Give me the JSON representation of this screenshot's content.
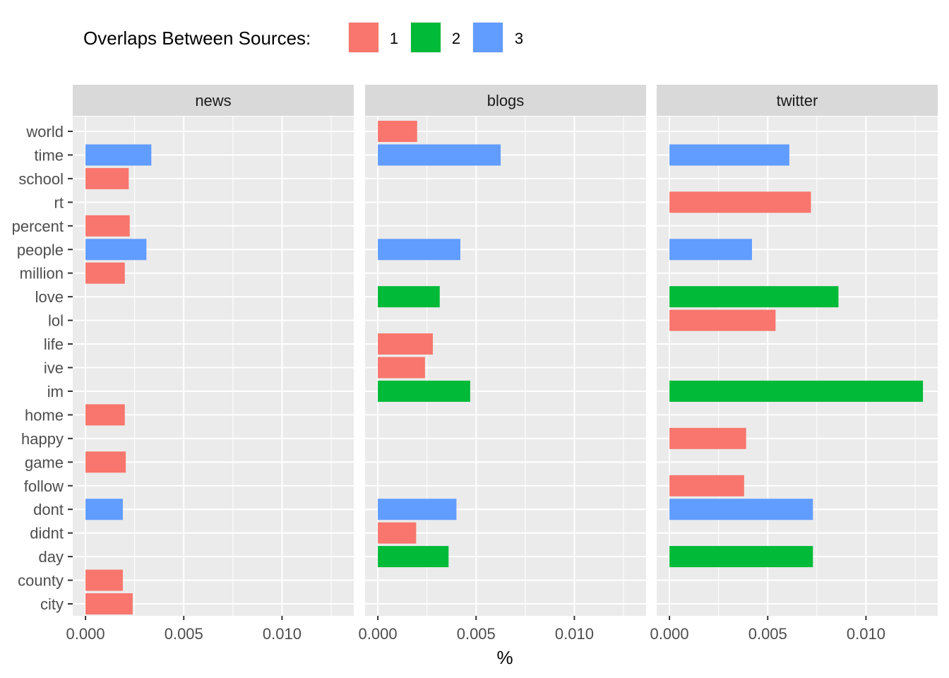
{
  "chart_data": {
    "type": "bar",
    "orientation": "horizontal",
    "facets": [
      "news",
      "blogs",
      "twitter"
    ],
    "categories": [
      "world",
      "time",
      "school",
      "rt",
      "percent",
      "people",
      "million",
      "love",
      "lol",
      "life",
      "ive",
      "im",
      "home",
      "happy",
      "game",
      "follow",
      "dont",
      "didnt",
      "day",
      "county",
      "city"
    ],
    "legend": {
      "title": "Overlaps Between Sources:",
      "entries": [
        {
          "label": "1",
          "color": "#F8766D"
        },
        {
          "label": "2",
          "color": "#00BA38"
        },
        {
          "label": "3",
          "color": "#619CFF"
        }
      ],
      "placement": "top"
    },
    "xlabel": "%",
    "ylabel": "",
    "xlim": [
      -0.00065,
      0.01365
    ],
    "x_ticks": [
      "0.000",
      "0.005",
      "0.010"
    ],
    "x_tick_values": [
      0,
      0.005,
      0.01
    ],
    "grid": true,
    "series": [
      {
        "facet": "news",
        "category": "time",
        "group": "3",
        "value": 0.00335
      },
      {
        "facet": "news",
        "category": "school",
        "group": "1",
        "value": 0.0022
      },
      {
        "facet": "news",
        "category": "percent",
        "group": "1",
        "value": 0.00225
      },
      {
        "facet": "news",
        "category": "people",
        "group": "3",
        "value": 0.0031
      },
      {
        "facet": "news",
        "category": "million",
        "group": "1",
        "value": 0.002
      },
      {
        "facet": "news",
        "category": "home",
        "group": "1",
        "value": 0.002
      },
      {
        "facet": "news",
        "category": "game",
        "group": "1",
        "value": 0.00205
      },
      {
        "facet": "news",
        "category": "dont",
        "group": "3",
        "value": 0.0019
      },
      {
        "facet": "news",
        "category": "county",
        "group": "1",
        "value": 0.0019
      },
      {
        "facet": "news",
        "category": "city",
        "group": "1",
        "value": 0.0024
      },
      {
        "facet": "blogs",
        "category": "world",
        "group": "1",
        "value": 0.002
      },
      {
        "facet": "blogs",
        "category": "time",
        "group": "3",
        "value": 0.00625
      },
      {
        "facet": "blogs",
        "category": "people",
        "group": "3",
        "value": 0.0042
      },
      {
        "facet": "blogs",
        "category": "love",
        "group": "2",
        "value": 0.00315
      },
      {
        "facet": "blogs",
        "category": "life",
        "group": "1",
        "value": 0.0028
      },
      {
        "facet": "blogs",
        "category": "ive",
        "group": "1",
        "value": 0.0024
      },
      {
        "facet": "blogs",
        "category": "im",
        "group": "2",
        "value": 0.0047
      },
      {
        "facet": "blogs",
        "category": "dont",
        "group": "3",
        "value": 0.004
      },
      {
        "facet": "blogs",
        "category": "didnt",
        "group": "1",
        "value": 0.00195
      },
      {
        "facet": "blogs",
        "category": "day",
        "group": "2",
        "value": 0.0036
      },
      {
        "facet": "twitter",
        "category": "time",
        "group": "3",
        "value": 0.0061
      },
      {
        "facet": "twitter",
        "category": "rt",
        "group": "1",
        "value": 0.0072
      },
      {
        "facet": "twitter",
        "category": "people",
        "group": "3",
        "value": 0.0042
      },
      {
        "facet": "twitter",
        "category": "love",
        "group": "2",
        "value": 0.0086
      },
      {
        "facet": "twitter",
        "category": "lol",
        "group": "1",
        "value": 0.0054
      },
      {
        "facet": "twitter",
        "category": "im",
        "group": "2",
        "value": 0.0129
      },
      {
        "facet": "twitter",
        "category": "happy",
        "group": "1",
        "value": 0.0039
      },
      {
        "facet": "twitter",
        "category": "follow",
        "group": "1",
        "value": 0.0038
      },
      {
        "facet": "twitter",
        "category": "dont",
        "group": "3",
        "value": 0.0073
      },
      {
        "facet": "twitter",
        "category": "day",
        "group": "2",
        "value": 0.0073
      }
    ]
  }
}
